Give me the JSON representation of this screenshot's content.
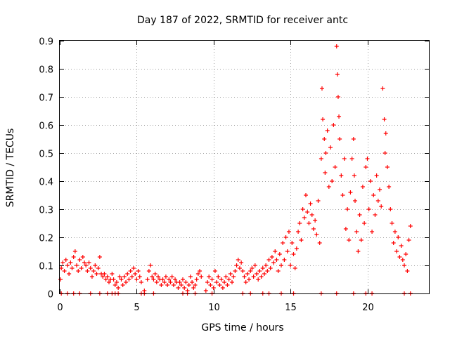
{
  "chart_data": {
    "type": "scatter",
    "title": "Day 187 of 2022, SRMTID for receiver antc",
    "xlabel": "GPS time / hours",
    "ylabel": "SRMTID / TECUs",
    "xlim": [
      0,
      24
    ],
    "ylim": [
      0,
      0.9
    ],
    "xticks": [
      0,
      5,
      10,
      15,
      20
    ],
    "xtick_labels": [
      "0",
      "5",
      "10",
      "15",
      "20"
    ],
    "yticks": [
      0,
      0.1,
      0.2,
      0.3,
      0.4,
      0.5,
      0.6,
      0.7,
      0.8,
      0.9
    ],
    "ytick_labels": [
      "0",
      "0.1",
      "0.2",
      "0.3",
      "0.4",
      "0.5",
      "0.6",
      "0.7",
      "0.8",
      "0.9"
    ],
    "grid": true,
    "marker": "+",
    "color": "#ff0000",
    "series": [
      {
        "name": "SRMTID",
        "points": [
          [
            0.05,
            0.05
          ],
          [
            0.1,
            0.09
          ],
          [
            0.2,
            0.11
          ],
          [
            0.3,
            0.08
          ],
          [
            0.4,
            0.12
          ],
          [
            0.5,
            0.1
          ],
          [
            0.6,
            0.07
          ],
          [
            0.7,
            0.11
          ],
          [
            0.8,
            0.09
          ],
          [
            0.9,
            0.13
          ],
          [
            1.0,
            0.15
          ],
          [
            1.1,
            0.1
          ],
          [
            1.2,
            0.08
          ],
          [
            1.3,
            0.12
          ],
          [
            1.4,
            0.09
          ],
          [
            1.5,
            0.13
          ],
          [
            1.6,
            0.11
          ],
          [
            1.7,
            0.1
          ],
          [
            1.8,
            0.08
          ],
          [
            1.9,
            0.11
          ],
          [
            2.0,
            0.09
          ],
          [
            2.1,
            0.06
          ],
          [
            2.2,
            0.08
          ],
          [
            2.3,
            0.1
          ],
          [
            2.4,
            0.07
          ],
          [
            2.5,
            0.09
          ],
          [
            2.6,
            0.13
          ],
          [
            2.7,
            0.07
          ],
          [
            2.8,
            0.06
          ],
          [
            2.9,
            0.07
          ],
          [
            3.0,
            0.05
          ],
          [
            3.1,
            0.06
          ],
          [
            3.2,
            0.04
          ],
          [
            3.3,
            0.05
          ],
          [
            3.4,
            0.07
          ],
          [
            3.5,
            0.05
          ],
          [
            3.6,
            0.03
          ],
          [
            3.7,
            0.04
          ],
          [
            3.8,
            0.02
          ],
          [
            3.9,
            0.06
          ],
          [
            4.0,
            0.05
          ],
          [
            4.1,
            0.03
          ],
          [
            4.2,
            0.06
          ],
          [
            4.3,
            0.04
          ],
          [
            4.4,
            0.07
          ],
          [
            4.5,
            0.05
          ],
          [
            4.6,
            0.08
          ],
          [
            4.7,
            0.06
          ],
          [
            4.8,
            0.09
          ],
          [
            4.9,
            0.07
          ],
          [
            5.0,
            0.05
          ],
          [
            5.1,
            0.08
          ],
          [
            5.2,
            0.06
          ],
          [
            5.3,
            0.04
          ],
          [
            5.5,
            0.01
          ],
          [
            5.7,
            0.05
          ],
          [
            5.8,
            0.08
          ],
          [
            5.9,
            0.1
          ],
          [
            6.0,
            0.06
          ],
          [
            6.1,
            0.05
          ],
          [
            6.2,
            0.07
          ],
          [
            6.3,
            0.04
          ],
          [
            6.4,
            0.06
          ],
          [
            6.5,
            0.05
          ],
          [
            6.6,
            0.03
          ],
          [
            6.7,
            0.05
          ],
          [
            6.8,
            0.04
          ],
          [
            6.9,
            0.06
          ],
          [
            7.0,
            0.03
          ],
          [
            7.1,
            0.05
          ],
          [
            7.2,
            0.04
          ],
          [
            7.3,
            0.06
          ],
          [
            7.4,
            0.03
          ],
          [
            7.5,
            0.05
          ],
          [
            7.6,
            0.04
          ],
          [
            7.7,
            0.02
          ],
          [
            7.8,
            0.04
          ],
          [
            7.9,
            0.03
          ],
          [
            8.0,
            0.05
          ],
          [
            8.1,
            0.02
          ],
          [
            8.2,
            0.04
          ],
          [
            8.3,
            0.01
          ],
          [
            8.4,
            0.03
          ],
          [
            8.5,
            0.06
          ],
          [
            8.6,
            0.04
          ],
          [
            8.7,
            0.02
          ],
          [
            8.8,
            0.03
          ],
          [
            8.9,
            0.05
          ],
          [
            9.0,
            0.07
          ],
          [
            9.1,
            0.08
          ],
          [
            9.2,
            0.06
          ],
          [
            9.5,
            0.01
          ],
          [
            9.6,
            0.04
          ],
          [
            9.7,
            0.06
          ],
          [
            9.8,
            0.03
          ],
          [
            9.9,
            0.05
          ],
          [
            10.0,
            0.02
          ],
          [
            10.1,
            0.08
          ],
          [
            10.2,
            0.04
          ],
          [
            10.3,
            0.06
          ],
          [
            10.4,
            0.03
          ],
          [
            10.5,
            0.05
          ],
          [
            10.6,
            0.02
          ],
          [
            10.7,
            0.04
          ],
          [
            10.8,
            0.06
          ],
          [
            10.9,
            0.03
          ],
          [
            11.0,
            0.05
          ],
          [
            11.1,
            0.07
          ],
          [
            11.2,
            0.04
          ],
          [
            11.3,
            0.06
          ],
          [
            11.4,
            0.08
          ],
          [
            11.5,
            0.1
          ],
          [
            11.6,
            0.12
          ],
          [
            11.7,
            0.09
          ],
          [
            11.8,
            0.11
          ],
          [
            11.9,
            0.08
          ],
          [
            12.0,
            0.06
          ],
          [
            12.1,
            0.04
          ],
          [
            12.2,
            0.07
          ],
          [
            12.3,
            0.05
          ],
          [
            12.4,
            0.08
          ],
          [
            12.5,
            0.09
          ],
          [
            12.6,
            0.06
          ],
          [
            12.7,
            0.1
          ],
          [
            12.8,
            0.07
          ],
          [
            12.9,
            0.05
          ],
          [
            13.0,
            0.08
          ],
          [
            13.1,
            0.06
          ],
          [
            13.2,
            0.09
          ],
          [
            13.3,
            0.07
          ],
          [
            13.4,
            0.1
          ],
          [
            13.5,
            0.08
          ],
          [
            13.6,
            0.12
          ],
          [
            13.7,
            0.09
          ],
          [
            13.8,
            0.13
          ],
          [
            13.9,
            0.11
          ],
          [
            14.0,
            0.15
          ],
          [
            14.1,
            0.12
          ],
          [
            14.2,
            0.08
          ],
          [
            14.3,
            0.14
          ],
          [
            14.4,
            0.1
          ],
          [
            14.5,
            0.18
          ],
          [
            14.6,
            0.12
          ],
          [
            14.7,
            0.2
          ],
          [
            14.8,
            0.15
          ],
          [
            14.9,
            0.22
          ],
          [
            15.0,
            0.1
          ],
          [
            15.1,
            0.18
          ],
          [
            15.2,
            0.14
          ],
          [
            15.3,
            0.09
          ],
          [
            15.4,
            0.16
          ],
          [
            15.5,
            0.22
          ],
          [
            15.6,
            0.25
          ],
          [
            15.7,
            0.19
          ],
          [
            15.8,
            0.3
          ],
          [
            15.9,
            0.27
          ],
          [
            16.0,
            0.35
          ],
          [
            16.1,
            0.29
          ],
          [
            16.2,
            0.25
          ],
          [
            16.3,
            0.32
          ],
          [
            16.4,
            0.28
          ],
          [
            16.5,
            0.23
          ],
          [
            16.6,
            0.26
          ],
          [
            16.7,
            0.21
          ],
          [
            16.8,
            0.33
          ],
          [
            16.9,
            0.18
          ],
          [
            17.0,
            0.48
          ],
          [
            17.05,
            0.73
          ],
          [
            17.1,
            0.62
          ],
          [
            17.2,
            0.55
          ],
          [
            17.25,
            0.43
          ],
          [
            17.3,
            0.5
          ],
          [
            17.4,
            0.58
          ],
          [
            17.5,
            0.38
          ],
          [
            17.6,
            0.52
          ],
          [
            17.7,
            0.4
          ],
          [
            17.8,
            0.6
          ],
          [
            17.9,
            0.45
          ],
          [
            18.0,
            0.88
          ],
          [
            18.05,
            0.78
          ],
          [
            18.1,
            0.7
          ],
          [
            18.15,
            0.63
          ],
          [
            18.2,
            0.55
          ],
          [
            18.3,
            0.42
          ],
          [
            18.4,
            0.35
          ],
          [
            18.5,
            0.48
          ],
          [
            18.6,
            0.23
          ],
          [
            18.7,
            0.3
          ],
          [
            18.8,
            0.19
          ],
          [
            18.9,
            0.36
          ],
          [
            19.0,
            0.48
          ],
          [
            19.1,
            0.55
          ],
          [
            19.15,
            0.42
          ],
          [
            19.2,
            0.33
          ],
          [
            19.3,
            0.22
          ],
          [
            19.4,
            0.15
          ],
          [
            19.5,
            0.28
          ],
          [
            19.6,
            0.19
          ],
          [
            19.7,
            0.38
          ],
          [
            19.8,
            0.25
          ],
          [
            19.9,
            0.45
          ],
          [
            20.0,
            0.48
          ],
          [
            20.1,
            0.3
          ],
          [
            20.2,
            0.4
          ],
          [
            20.3,
            0.22
          ],
          [
            20.4,
            0.35
          ],
          [
            20.5,
            0.28
          ],
          [
            20.6,
            0.42
          ],
          [
            20.7,
            0.33
          ],
          [
            20.8,
            0.37
          ],
          [
            20.9,
            0.31
          ],
          [
            21.0,
            0.73
          ],
          [
            21.1,
            0.62
          ],
          [
            21.15,
            0.5
          ],
          [
            21.2,
            0.57
          ],
          [
            21.3,
            0.45
          ],
          [
            21.4,
            0.38
          ],
          [
            21.5,
            0.3
          ],
          [
            21.6,
            0.25
          ],
          [
            21.7,
            0.18
          ],
          [
            21.8,
            0.22
          ],
          [
            21.9,
            0.15
          ],
          [
            22.0,
            0.2
          ],
          [
            22.1,
            0.13
          ],
          [
            22.2,
            0.17
          ],
          [
            22.3,
            0.12
          ],
          [
            22.4,
            0.1
          ],
          [
            22.5,
            0.14
          ],
          [
            22.6,
            0.08
          ],
          [
            22.7,
            0.19
          ],
          [
            22.8,
            0.24
          ]
        ]
      }
    ],
    "zero_markers": [
      0.1,
      0.5,
      0.9,
      1.3,
      2.0,
      2.6,
      3.1,
      3.4,
      3.6,
      3.8,
      5.3,
      5.5,
      6.1,
      8.0,
      8.3,
      8.8,
      9.9,
      11.9,
      12.4,
      13.2,
      13.6,
      14.4,
      15.2,
      17.0,
      18.0,
      19.1,
      19.9,
      20.3,
      22.4,
      22.8
    ]
  }
}
